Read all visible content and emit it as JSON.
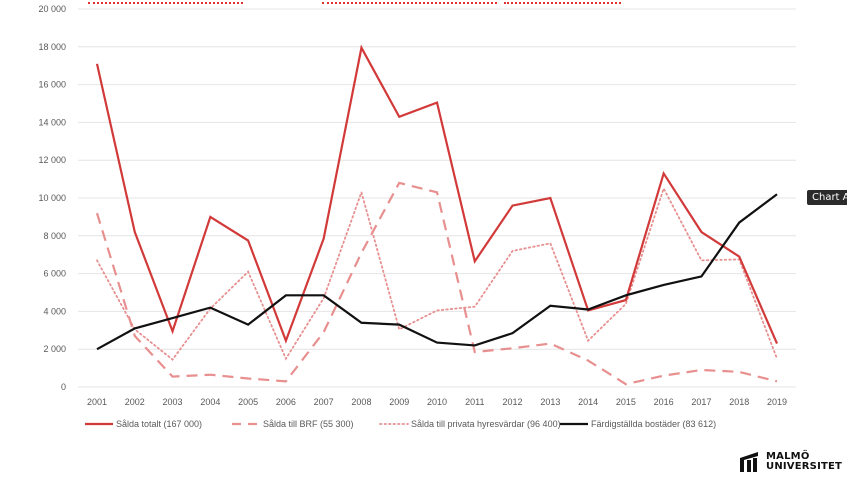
{
  "tooltip": {
    "label": "Chart A"
  },
  "logo": {
    "line1": "MALMÖ",
    "line2": "UNIVERSITET"
  },
  "colors": {
    "total": "#d23a3a",
    "brf": "#e88f8f",
    "private": "#e88f8f",
    "completed": "#111111",
    "grid": "#e4e4e4",
    "spellcheck": "#e03030"
  },
  "chart_data": {
    "type": "line",
    "title": "",
    "xlabel": "",
    "ylabel": "",
    "ylim": [
      0,
      20000
    ],
    "yticks": [
      0,
      2000,
      4000,
      6000,
      8000,
      10000,
      12000,
      14000,
      16000,
      18000,
      20000
    ],
    "ytick_labels": [
      "0",
      "2 000",
      "4 000",
      "6 000",
      "8 000",
      "10 000",
      "12 000",
      "14 000",
      "16 000",
      "18 000",
      "20 000"
    ],
    "grid": true,
    "legend_position": "bottom",
    "x": [
      "2001",
      "2002",
      "2003",
      "2004",
      "2005",
      "2006",
      "2007",
      "2008",
      "2009",
      "2010",
      "2011",
      "2012",
      "2013",
      "2014",
      "2015",
      "2016",
      "2017",
      "2018",
      "2019"
    ],
    "series": [
      {
        "name": "Sålda totalt (167 000)",
        "style": "solid",
        "color_key": "total",
        "values": [
          17100,
          8200,
          2950,
          9000,
          7750,
          2450,
          7850,
          17950,
          14300,
          15050,
          6650,
          9600,
          10000,
          4050,
          4600,
          11300,
          8200,
          6900,
          2300
        ]
      },
      {
        "name": "Sålda till BRF (55 300)",
        "style": "dashed",
        "color_key": "brf",
        "values": [
          9200,
          2700,
          550,
          650,
          450,
          300,
          2900,
          7100,
          10800,
          10300,
          1850,
          2050,
          2300,
          1400,
          150,
          600,
          900,
          800,
          300
        ]
      },
      {
        "name": "Sålda till privata hyresvärdar (96 400)",
        "style": "dotted",
        "color_key": "private",
        "values": [
          6700,
          3050,
          1450,
          4150,
          6100,
          1500,
          4700,
          10300,
          3050,
          4050,
          4250,
          7200,
          7600,
          2450,
          4400,
          10500,
          6700,
          6750,
          1500
        ]
      },
      {
        "name": "Färdigställda bostäder (83 612)",
        "style": "solid",
        "color_key": "completed",
        "values": [
          2000,
          3100,
          3650,
          4200,
          3300,
          4850,
          4850,
          3400,
          3300,
          2350,
          2200,
          2850,
          4300,
          4100,
          4850,
          5400,
          5850,
          8700,
          10200
        ]
      }
    ]
  }
}
